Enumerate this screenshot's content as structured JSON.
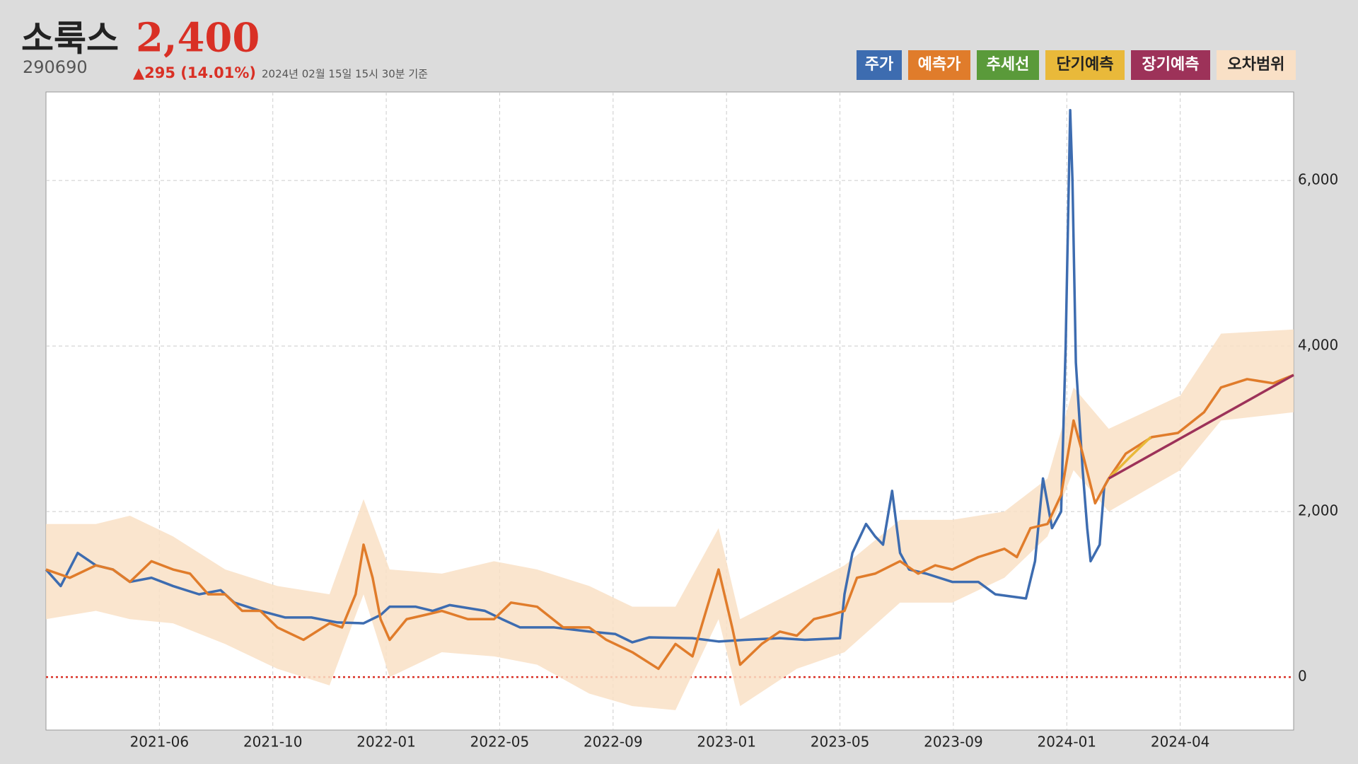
{
  "header": {
    "title": "소룩스",
    "price": "2,400",
    "code": "290690",
    "change": "▲295 (14.01%)",
    "timestamp": "2024년 02월 15일 15시 30분 기준"
  },
  "chart_data": {
    "type": "line",
    "xlim": [
      0,
      1100
    ],
    "xticks": [
      {
        "value": 100,
        "label": "2021-06"
      },
      {
        "value": 200,
        "label": "2021-10"
      },
      {
        "value": 300,
        "label": "2022-01"
      },
      {
        "value": 400,
        "label": "2022-05"
      },
      {
        "value": 500,
        "label": "2022-09"
      },
      {
        "value": 600,
        "label": "2023-01"
      },
      {
        "value": 700,
        "label": "2023-05"
      },
      {
        "value": 800,
        "label": "2023-09"
      },
      {
        "value": 900,
        "label": "2024-01"
      },
      {
        "value": 1000,
        "label": "2024-04"
      }
    ],
    "ylim": [
      -640,
      7070
    ],
    "yticks": [
      0,
      {
        "value": 2000,
        "label": "2,000"
      },
      {
        "value": 4000,
        "label": "4,000"
      },
      {
        "value": 6000,
        "label": "6,000"
      }
    ],
    "grid": true,
    "zero_line_color": "#d93025",
    "legend": "top-right",
    "series": [
      {
        "name": "주가",
        "color": "#3d6cb0",
        "x": [
          0,
          13,
          28,
          44,
          59,
          74,
          93,
          112,
          135,
          154,
          166,
          189,
          211,
          234,
          257,
          280,
          295,
          303,
          326,
          341,
          356,
          387,
          402,
          418,
          448,
          479,
          502,
          517,
          532,
          570,
          593,
          616,
          647,
          669,
          700,
          704,
          711,
          723,
          731,
          738,
          746,
          753,
          761,
          776,
          799,
          822,
          837,
          864,
          872,
          879,
          887,
          895,
          899,
          903,
          905,
          908,
          914,
          918,
          921,
          929,
          933,
          937
        ],
        "values": [
          1300,
          1100,
          1500,
          1350,
          1300,
          1150,
          1200,
          1100,
          1000,
          1050,
          900,
          800,
          720,
          720,
          660,
          650,
          750,
          850,
          850,
          800,
          870,
          800,
          700,
          600,
          600,
          550,
          520,
          420,
          480,
          470,
          430,
          450,
          470,
          450,
          470,
          1000,
          1500,
          1850,
          1700,
          1600,
          2250,
          1500,
          1300,
          1250,
          1150,
          1150,
          1000,
          950,
          1400,
          2400,
          1800,
          2000,
          4000,
          6850,
          6000,
          3800,
          2500,
          1800,
          1400,
          1600,
          2300,
          2400
        ]
      },
      {
        "name": "예측가",
        "color": "#e07c2b",
        "x": [
          0,
          21,
          44,
          59,
          74,
          93,
          112,
          127,
          143,
          158,
          173,
          189,
          204,
          227,
          250,
          261,
          273,
          280,
          288,
          295,
          303,
          318,
          334,
          349,
          372,
          395,
          410,
          433,
          456,
          479,
          494,
          517,
          540,
          555,
          570,
          582,
          593,
          605,
          612,
          631,
          647,
          662,
          677,
          692,
          704,
          715,
          731,
          753,
          769,
          784,
          799,
          822,
          845,
          856,
          868,
          883,
          895,
          906,
          914,
          925,
          937,
          952,
          975,
          998,
          1021,
          1036,
          1059,
          1082,
          1100
        ],
        "values": [
          1300,
          1200,
          1350,
          1300,
          1150,
          1400,
          1300,
          1250,
          1000,
          1000,
          800,
          800,
          600,
          450,
          650,
          600,
          1000,
          1600,
          1200,
          700,
          450,
          700,
          750,
          800,
          700,
          700,
          900,
          850,
          600,
          600,
          450,
          300,
          100,
          400,
          250,
          800,
          1300,
          600,
          150,
          400,
          550,
          500,
          700,
          750,
          800,
          1200,
          1250,
          1400,
          1250,
          1350,
          1300,
          1450,
          1550,
          1450,
          1800,
          1850,
          2200,
          3100,
          2700,
          2100,
          2400,
          2700,
          2900,
          2950,
          3200,
          3500,
          3600,
          3550,
          3650
        ]
      },
      {
        "name": "추세선",
        "color": "#5a9a3a",
        "x": [],
        "values": []
      },
      {
        "name": "단기예측",
        "color": "#e9b93a",
        "x": [
          937,
          955,
          974
        ],
        "values": [
          2400,
          2650,
          2900
        ]
      },
      {
        "name": "장기예측",
        "color": "#9d3259",
        "x": [
          937,
          1100
        ],
        "values": [
          2400,
          3650
        ]
      },
      {
        "name": "오차범위",
        "color": "#f9e0c6",
        "x": [
          0,
          44,
          74,
          112,
          158,
          204,
          250,
          280,
          303,
          349,
          395,
          433,
          479,
          517,
          555,
          593,
          612,
          662,
          704,
          753,
          799,
          845,
          883,
          906,
          937,
          1000,
          1036,
          1100
        ],
        "high": [
          1850,
          1850,
          1950,
          1700,
          1300,
          1100,
          1000,
          2150,
          1300,
          1250,
          1400,
          1300,
          1100,
          850,
          850,
          1800,
          700,
          1050,
          1350,
          1900,
          1900,
          2000,
          2400,
          3500,
          3000,
          3400,
          4150,
          4200
        ],
        "low": [
          700,
          800,
          700,
          650,
          400,
          100,
          -100,
          1000,
          0,
          300,
          250,
          150,
          -200,
          -350,
          -400,
          700,
          -350,
          100,
          300,
          900,
          900,
          1200,
          1700,
          2500,
          2000,
          2500,
          3100,
          3200
        ]
      }
    ]
  }
}
